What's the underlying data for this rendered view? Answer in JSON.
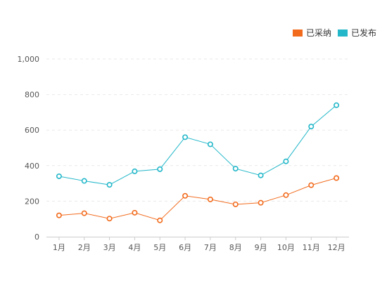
{
  "chart_data": {
    "type": "line",
    "title": "",
    "xlabel": "",
    "ylabel": "",
    "categories": [
      "1月",
      "2月",
      "3月",
      "4月",
      "5月",
      "6月",
      "7月",
      "8月",
      "9月",
      "10月",
      "11月",
      "12月"
    ],
    "yticks": [
      "0",
      "200",
      "400",
      "600",
      "800",
      "1,000"
    ],
    "ylim": [
      0,
      1000
    ],
    "grid": true,
    "legend_position": "top-right",
    "series": [
      {
        "name": "已采纳",
        "color": "#f26b1d",
        "values": [
          120,
          132,
          102,
          135,
          92,
          230,
          210,
          182,
          191,
          234,
          290,
          330
        ]
      },
      {
        "name": "已发布",
        "color": "#23b7c9",
        "values": [
          340,
          314,
          292,
          368,
          380,
          560,
          520,
          383,
          345,
          424,
          620,
          740
        ]
      }
    ]
  }
}
